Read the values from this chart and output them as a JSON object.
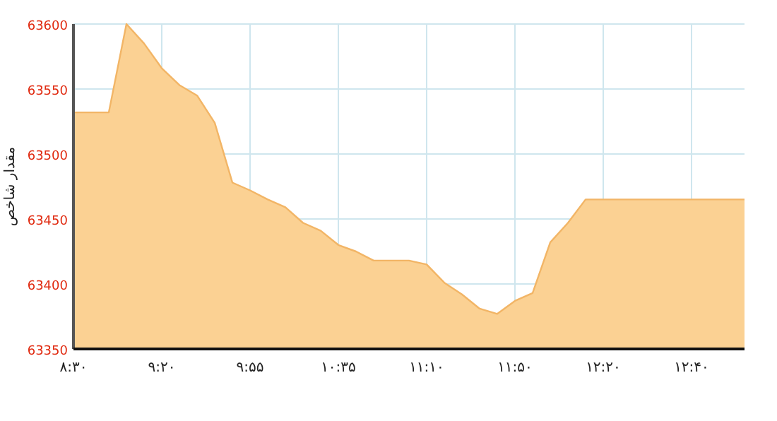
{
  "chart_data": {
    "type": "area",
    "ylabel": "مقدار شاخص",
    "categories": [
      "۸:۳۰",
      null,
      null,
      null,
      null,
      "۹:۲۰",
      null,
      null,
      null,
      null,
      "۹:۵۵",
      null,
      null,
      null,
      null,
      "۱۰:۳۵",
      null,
      null,
      null,
      null,
      "۱۱:۱۰",
      null,
      null,
      null,
      null,
      "۱۱:۵۰",
      null,
      null,
      null,
      null,
      "۱۲:۲۰",
      null,
      null,
      null,
      null,
      "۱۲:۴۰",
      null,
      null,
      null
    ],
    "values": [
      63532,
      63532,
      63532,
      63600,
      63585,
      63566,
      63553,
      63545,
      63524,
      63478,
      63472,
      63465,
      63459,
      63447,
      63441,
      63430,
      63425,
      63418,
      63418,
      63418,
      63415,
      63401,
      63392,
      63381,
      63377,
      63387,
      63393,
      63432,
      63447,
      63465,
      63465,
      63465,
      63465,
      63465,
      63465,
      63465,
      63465,
      63465,
      63465
    ],
    "color": "#fbd193",
    "ylim": [
      63350,
      63600
    ],
    "yticks": [
      63350,
      63400,
      63450,
      63500,
      63550,
      63600
    ],
    "grid": true
  }
}
